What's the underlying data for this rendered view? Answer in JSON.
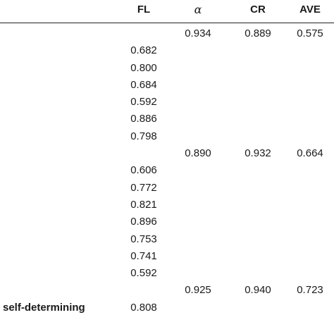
{
  "table": {
    "headers": {
      "fl": "FL",
      "alpha": "α",
      "cr": "CR",
      "ave": "AVE"
    },
    "rows": [
      {
        "label": "",
        "fl": "",
        "alpha": "0.934",
        "cr": "0.889",
        "ave": "0.575"
      },
      {
        "label": "",
        "fl": "0.682",
        "alpha": "",
        "cr": "",
        "ave": ""
      },
      {
        "label": "",
        "fl": "0.800",
        "alpha": "",
        "cr": "",
        "ave": ""
      },
      {
        "label": "",
        "fl": "0.684",
        "alpha": "",
        "cr": "",
        "ave": ""
      },
      {
        "label": "",
        "fl": "0.592",
        "alpha": "",
        "cr": "",
        "ave": ""
      },
      {
        "label": "",
        "fl": "0.886",
        "alpha": "",
        "cr": "",
        "ave": ""
      },
      {
        "label": "",
        "fl": "0.798",
        "alpha": "",
        "cr": "",
        "ave": ""
      },
      {
        "label": "",
        "fl": "",
        "alpha": "0.890",
        "cr": "0.932",
        "ave": "0.664"
      },
      {
        "label": "",
        "fl": "0.606",
        "alpha": "",
        "cr": "",
        "ave": ""
      },
      {
        "label": "",
        "fl": "0.772",
        "alpha": "",
        "cr": "",
        "ave": ""
      },
      {
        "label": "",
        "fl": "0.821",
        "alpha": "",
        "cr": "",
        "ave": ""
      },
      {
        "label": "",
        "fl": "0.896",
        "alpha": "",
        "cr": "",
        "ave": ""
      },
      {
        "label": "",
        "fl": "0.753",
        "alpha": "",
        "cr": "",
        "ave": ""
      },
      {
        "label": "",
        "fl": "0.741",
        "alpha": "",
        "cr": "",
        "ave": ""
      },
      {
        "label": "",
        "fl": "0.592",
        "alpha": "",
        "cr": "",
        "ave": ""
      },
      {
        "label": "",
        "fl": "",
        "alpha": "0.925",
        "cr": "0.940",
        "ave": "0.723"
      },
      {
        "label": "self-determining",
        "fl": "0.808",
        "alpha": "",
        "cr": "",
        "ave": ""
      }
    ]
  }
}
